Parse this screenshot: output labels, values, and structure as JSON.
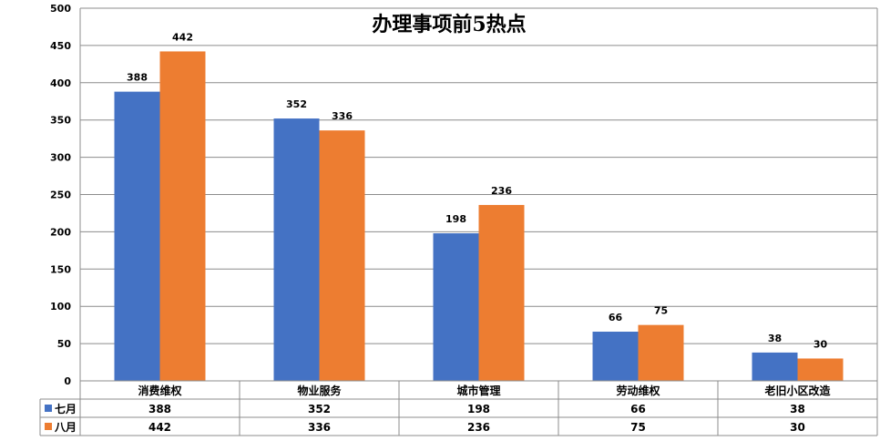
{
  "chart_data": {
    "type": "bar",
    "title": "办理事项前5热点",
    "categories": [
      "消费维权",
      "物业服务",
      "城市管理",
      "劳动维权",
      "老旧小区改造"
    ],
    "series": [
      {
        "name": "七月",
        "color": "#4472C4",
        "values": [
          388,
          352,
          198,
          66,
          38
        ]
      },
      {
        "name": "八月",
        "color": "#ED7D31",
        "values": [
          442,
          336,
          236,
          75,
          30
        ]
      }
    ],
    "ylim": [
      0,
      500
    ],
    "yticks": [
      0,
      50,
      100,
      150,
      200,
      250,
      300,
      350,
      400,
      450,
      500
    ],
    "grid": true,
    "legend": "data-table"
  }
}
